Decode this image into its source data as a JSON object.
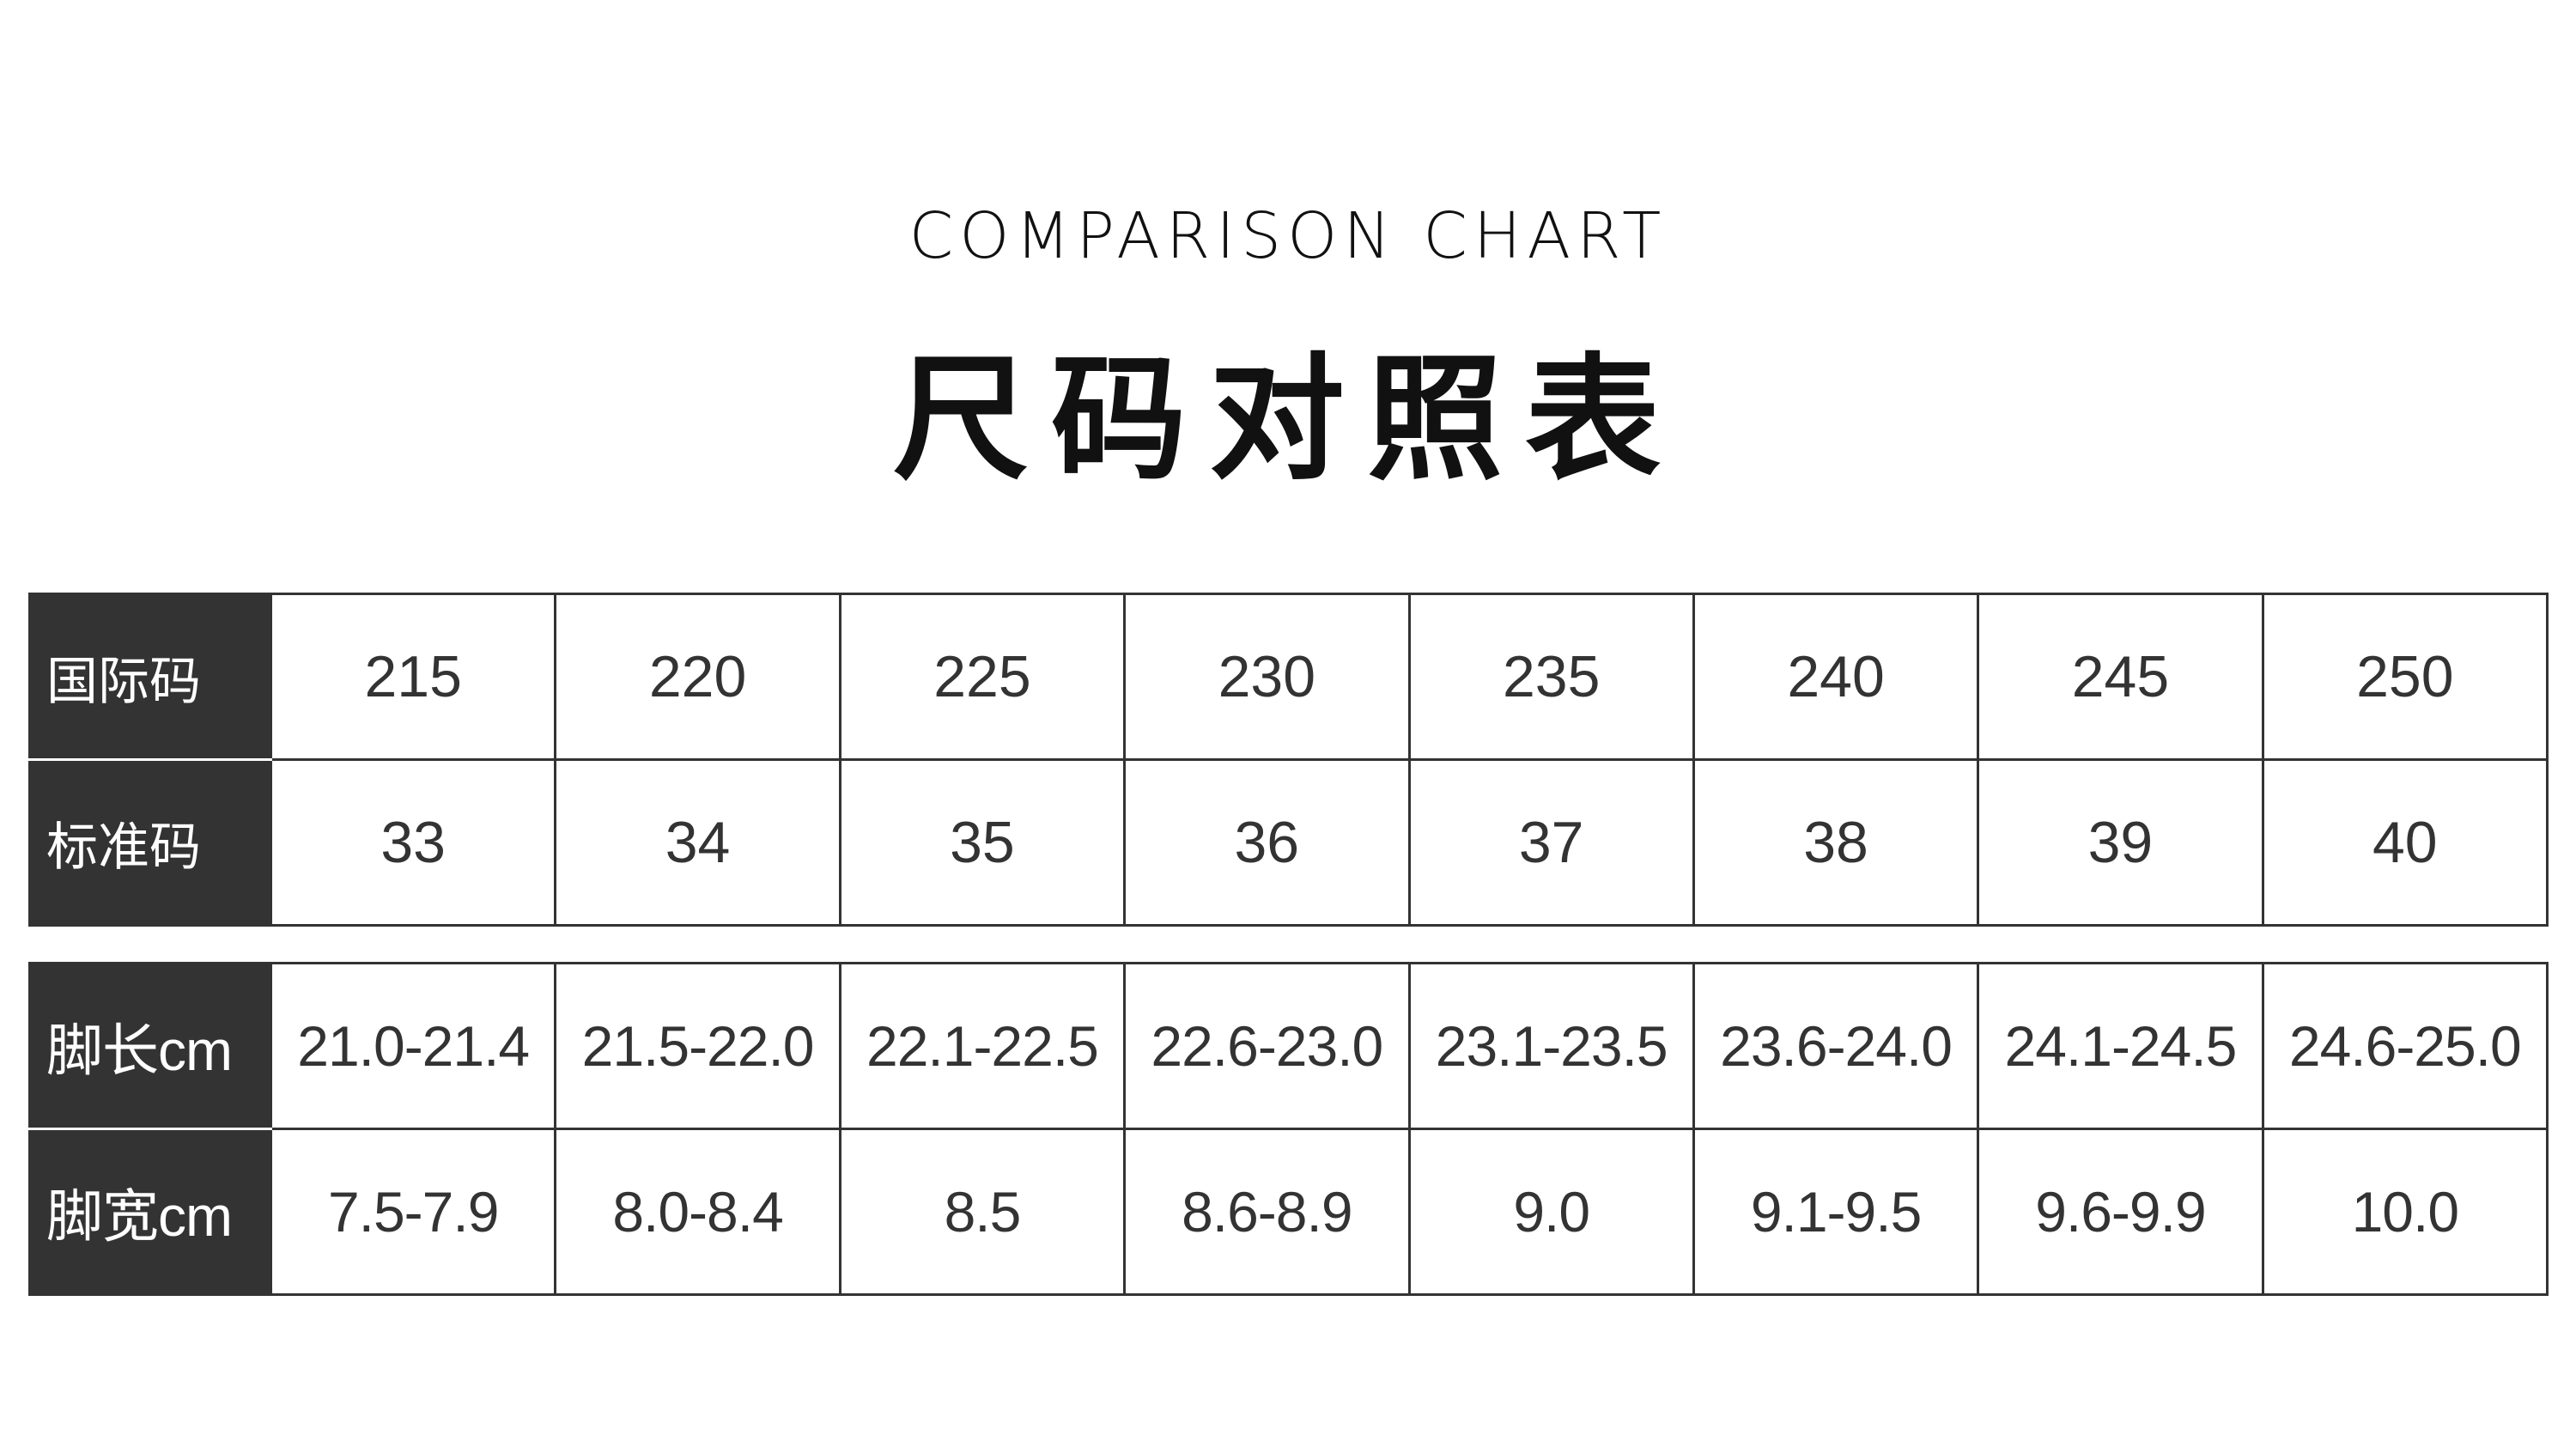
{
  "header": {
    "subtitle": "COMPARISON CHART",
    "title": "尺码对照表"
  },
  "table1": {
    "rows": [
      {
        "label": "国际码",
        "values": [
          "215",
          "220",
          "225",
          "230",
          "235",
          "240",
          "245",
          "250"
        ]
      },
      {
        "label": "标准码",
        "values": [
          "33",
          "34",
          "35",
          "36",
          "37",
          "38",
          "39",
          "40"
        ]
      }
    ]
  },
  "table2": {
    "rows": [
      {
        "label": "脚长cm",
        "values": [
          "21.0-21.4",
          "21.5-22.0",
          "22.1-22.5",
          "22.6-23.0",
          "23.1-23.5",
          "23.6-24.0",
          "24.1-24.5",
          "24.6-25.0"
        ]
      },
      {
        "label": "脚宽cm",
        "values": [
          "7.5-7.9",
          "8.0-8.4",
          "8.5",
          "8.6-8.9",
          "9.0",
          "9.1-9.5",
          "9.6-9.9",
          "10.0"
        ]
      }
    ]
  },
  "colors": {
    "header_bg": "#333333",
    "text": "#333333"
  }
}
